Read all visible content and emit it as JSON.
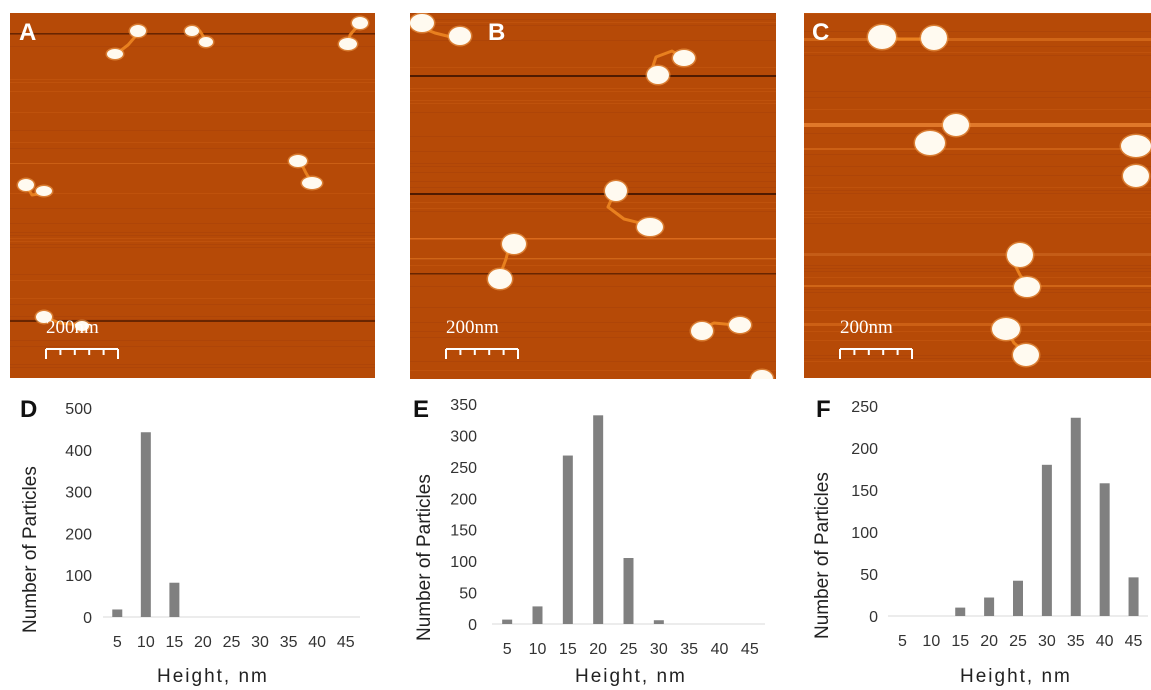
{
  "afm_panels": [
    {
      "letter": "A",
      "scale_label": "200nm"
    },
    {
      "letter": "B",
      "scale_label": "200nm"
    },
    {
      "letter": "C",
      "scale_label": "200nm"
    }
  ],
  "colors": {
    "afm_background": "#b64a07",
    "particle": "#fffaf0",
    "bar": "#808080",
    "axis": "#d9d9d9"
  },
  "chart_data": [
    {
      "type": "bar",
      "panel": "D",
      "categories": [
        "5",
        "10",
        "15",
        "20",
        "25",
        "30",
        "35",
        "40",
        "45"
      ],
      "values": [
        18,
        442,
        82,
        0,
        0,
        0,
        0,
        0,
        0
      ],
      "xlabel": "Height, nm",
      "ylabel": "Number of Particles",
      "yticks": [
        0,
        100,
        200,
        300,
        400,
        500
      ],
      "ylim": [
        0,
        500
      ],
      "grid": false
    },
    {
      "type": "bar",
      "panel": "E",
      "categories": [
        "5",
        "10",
        "15",
        "20",
        "25",
        "30",
        "35",
        "40",
        "45"
      ],
      "values": [
        7,
        28,
        268,
        332,
        105,
        6,
        0,
        0,
        0
      ],
      "xlabel": "Height, nm",
      "ylabel": "Number of Particles",
      "yticks": [
        0,
        50,
        100,
        150,
        200,
        250,
        300,
        350
      ],
      "ylim": [
        0,
        350
      ],
      "grid": false
    },
    {
      "type": "bar",
      "panel": "F",
      "categories": [
        "5",
        "10",
        "15",
        "20",
        "25",
        "30",
        "35",
        "40",
        "45"
      ],
      "values": [
        0,
        0,
        10,
        22,
        42,
        180,
        236,
        158,
        46
      ],
      "xlabel": "Height, nm",
      "ylabel": "Number of Particles",
      "yticks": [
        0,
        50,
        100,
        150,
        200,
        250
      ],
      "ylim": [
        0,
        250
      ],
      "grid": false
    }
  ]
}
